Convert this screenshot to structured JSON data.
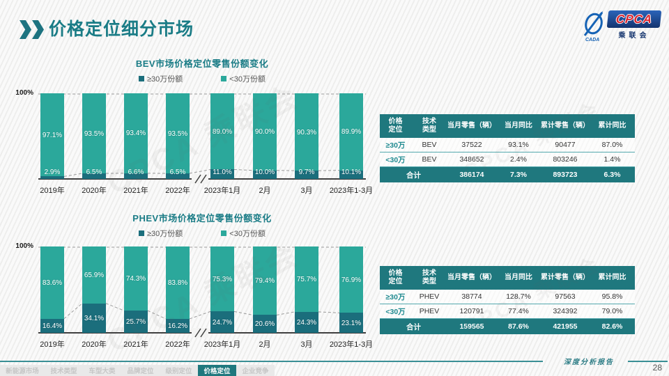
{
  "page": {
    "title": "价格定位细分市场",
    "page_number": "28",
    "report_label": "深度分析报告",
    "watermark": "CPCA 乘联会"
  },
  "logo": {
    "cpca": "CPCA",
    "name": "乘联会",
    "cada": "CADA"
  },
  "colors": {
    "teal": "#2BA89B",
    "dark": "#1B6E7C",
    "accent": "#1F787E"
  },
  "chart_data": [
    {
      "type": "bar",
      "stacked": true,
      "title": "BEV市场价格定位零售份额变化",
      "ytick_label": "100%",
      "ylim": [
        0,
        100
      ],
      "grid": "dashed-top-only",
      "legend_position": "top-center",
      "categories": [
        "2019年",
        "2020年",
        "2021年",
        "2022年",
        "2023年1月",
        "2月",
        "3月",
        "2023年1-3月"
      ],
      "series": [
        {
          "name": "≥30万份额",
          "color": "#1B6E7C",
          "values": [
            2.9,
            6.5,
            6.6,
            6.5,
            11.0,
            10.0,
            9.7,
            10.1
          ]
        },
        {
          "name": "<30万份额",
          "color": "#2BA89B",
          "values": [
            97.1,
            93.5,
            93.4,
            93.5,
            89.0,
            90.0,
            90.3,
            89.9
          ]
        }
      ],
      "axis_break_after_index": 3
    },
    {
      "type": "bar",
      "stacked": true,
      "title": "PHEV市场价格定位零售份额变化",
      "ytick_label": "100%",
      "ylim": [
        0,
        100
      ],
      "grid": "dashed-top-only",
      "legend_position": "top-center",
      "categories": [
        "2019年",
        "2020年",
        "2021年",
        "2022年",
        "2023年1月",
        "2月",
        "3月",
        "2023年1-3月"
      ],
      "series": [
        {
          "name": "≥30万份额",
          "color": "#1B6E7C",
          "values": [
            16.4,
            34.1,
            25.7,
            16.2,
            24.7,
            20.6,
            24.3,
            23.1
          ]
        },
        {
          "name": "<30万份额",
          "color": "#2BA89B",
          "values": [
            83.6,
            65.9,
            74.3,
            83.8,
            75.3,
            79.4,
            75.7,
            76.9
          ]
        }
      ],
      "axis_break_after_index": 3
    }
  ],
  "tables": [
    {
      "headers": [
        "价格\n定位",
        "技术\n类型",
        "当月零售（辆）",
        "当月同比",
        "累计零售（辆）",
        "累计同比"
      ],
      "rows": [
        [
          "≥30万",
          "BEV",
          "37522",
          "93.1%",
          "90477",
          "87.0%"
        ],
        [
          "<30万",
          "BEV",
          "348652",
          "2.4%",
          "803246",
          "1.4%"
        ]
      ],
      "total_label": "合计",
      "total_values": [
        "386174",
        "7.3%",
        "893723",
        "6.3%"
      ]
    },
    {
      "headers": [
        "价格\n定位",
        "技术\n类型",
        "当月零售（辆）",
        "当月同比",
        "累计零售（辆）",
        "累计同比"
      ],
      "rows": [
        [
          "≥30万",
          "PHEV",
          "38774",
          "128.7%",
          "97563",
          "95.8%"
        ],
        [
          "<30万",
          "PHEV",
          "120791",
          "77.4%",
          "324392",
          "79.0%"
        ]
      ],
      "total_label": "合计",
      "total_values": [
        "159565",
        "87.6%",
        "421955",
        "82.6%"
      ]
    }
  ],
  "footer": {
    "tabs": [
      {
        "label": "新能源市场",
        "active": false
      },
      {
        "label": "技术类型",
        "active": false
      },
      {
        "label": "车型大类",
        "active": false
      },
      {
        "label": "品牌定位",
        "active": false
      },
      {
        "label": "级别定位",
        "active": false
      },
      {
        "label": "价格定位",
        "active": true
      },
      {
        "label": "企业竞争",
        "active": false
      }
    ]
  }
}
